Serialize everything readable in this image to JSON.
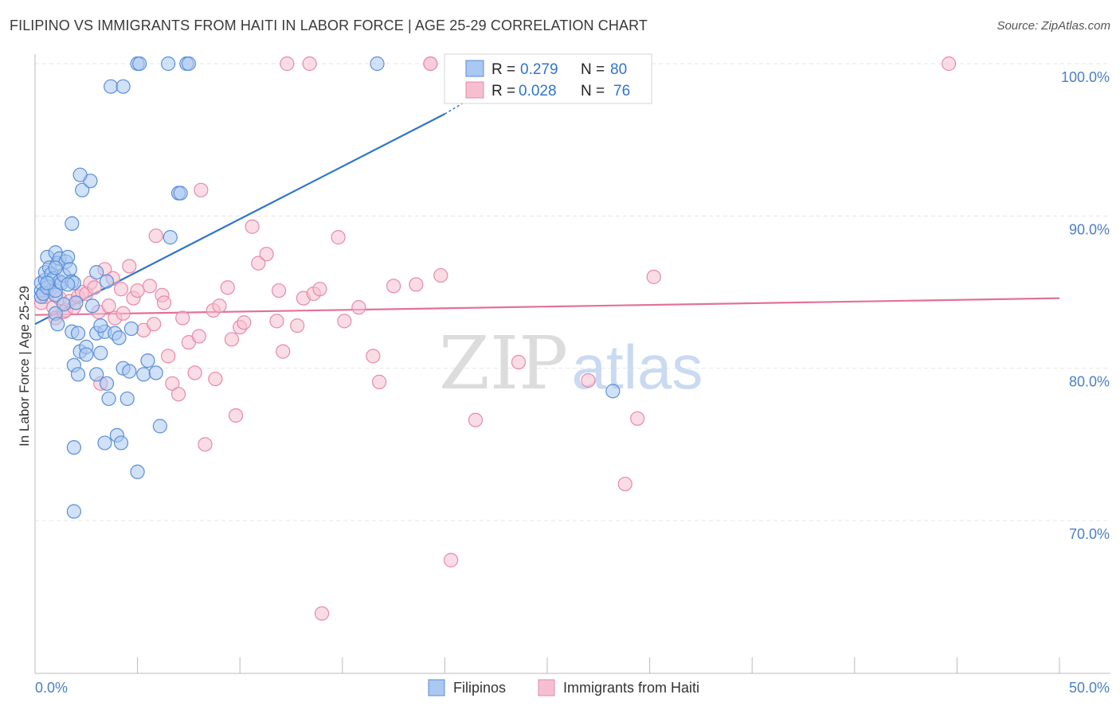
{
  "title": "FILIPINO VS IMMIGRANTS FROM HAITI IN LABOR FORCE | AGE 25-29 CORRELATION CHART",
  "source": "Source: ZipAtlas.com",
  "watermark": {
    "zip": "ZIP",
    "atlas": "atlas"
  },
  "legend_box": {
    "rows": [
      {
        "r_label": "R = ",
        "r_value": "0.279",
        "n_label": "N = ",
        "n_value": "80"
      },
      {
        "r_label": "R = ",
        "r_value": "0.028",
        "n_label": "N = ",
        "n_value": "76"
      }
    ]
  },
  "colors": {
    "blue_fill": "#a9c8f2",
    "blue_stroke": "#5b8ed6",
    "blue_line": "#2f74cf",
    "pink_fill": "#f6bfd0",
    "pink_stroke": "#e68aa8",
    "pink_line": "#e3719a",
    "axis_text": "#4a7fc8",
    "grid": "#e6e6e6"
  },
  "chart_data": {
    "type": "scatter",
    "title": "FILIPINO VS IMMIGRANTS FROM HAITI IN LABOR FORCE | AGE 25-29 CORRELATION CHART",
    "xlabel": "",
    "ylabel": "In Labor Force | Age 25-29",
    "xlim": [
      0,
      50
    ],
    "ylim": [
      60,
      100
    ],
    "x_tick_labels": [
      "0.0%",
      "50.0%"
    ],
    "y_ticks": [
      70,
      80,
      90,
      100
    ],
    "y_tick_labels": [
      "70.0%",
      "80.0%",
      "90.0%",
      "100.0%"
    ],
    "legend": [
      "Filipinos",
      "Immigrants from Haiti"
    ],
    "series": [
      {
        "name": "Filipinos",
        "r": 0.279,
        "n": 80,
        "trend": {
          "x0": 0,
          "y0": 82.9,
          "x1": 20,
          "y1": 96.7,
          "x1_dashed": 21.5,
          "y1_dashed": 97.9
        },
        "points": [
          [
            0.3,
            85.1
          ],
          [
            0.3,
            84.7
          ],
          [
            0.3,
            85.6
          ],
          [
            0.4,
            84.9
          ],
          [
            0.5,
            85.8
          ],
          [
            0.5,
            86.3
          ],
          [
            0.6,
            87.3
          ],
          [
            0.6,
            85.3
          ],
          [
            0.7,
            86.6
          ],
          [
            0.8,
            86.2
          ],
          [
            0.9,
            85.9
          ],
          [
            1.0,
            84.8
          ],
          [
            1.0,
            85.1
          ],
          [
            1.0,
            87.6
          ],
          [
            1.1,
            86.9
          ],
          [
            1.2,
            87.2
          ],
          [
            1.2,
            85.7
          ],
          [
            1.3,
            85.6
          ],
          [
            1.4,
            86.1
          ],
          [
            1.5,
            87.0
          ],
          [
            1.6,
            87.3
          ],
          [
            1.7,
            86.5
          ],
          [
            1.8,
            85.7
          ],
          [
            1.9,
            85.6
          ],
          [
            1.4,
            84.2
          ],
          [
            1.0,
            83.6
          ],
          [
            1.1,
            82.9
          ],
          [
            1.8,
            82.4
          ],
          [
            2.1,
            82.3
          ],
          [
            2.2,
            81.1
          ],
          [
            2.5,
            81.4
          ],
          [
            2.5,
            80.9
          ],
          [
            1.9,
            80.2
          ],
          [
            2.1,
            79.6
          ],
          [
            2.3,
            91.7
          ],
          [
            2.7,
            92.3
          ],
          [
            2.2,
            92.7
          ],
          [
            1.8,
            89.5
          ],
          [
            1.9,
            74.8
          ],
          [
            1.9,
            70.6
          ],
          [
            2.8,
            84.1
          ],
          [
            3.0,
            86.3
          ],
          [
            3.0,
            82.3
          ],
          [
            3.2,
            81.0
          ],
          [
            3.0,
            79.6
          ],
          [
            3.4,
            82.4
          ],
          [
            3.5,
            85.7
          ],
          [
            3.4,
            75.1
          ],
          [
            3.5,
            79.0
          ],
          [
            3.6,
            78.0
          ],
          [
            3.7,
            98.5
          ],
          [
            3.9,
            82.3
          ],
          [
            4.0,
            75.6
          ],
          [
            4.1,
            82.0
          ],
          [
            4.2,
            75.1
          ],
          [
            4.3,
            80.0
          ],
          [
            4.5,
            78.0
          ],
          [
            4.6,
            79.8
          ],
          [
            4.7,
            82.6
          ],
          [
            5.0,
            100
          ],
          [
            5.0,
            73.2
          ],
          [
            5.1,
            100
          ],
          [
            5.3,
            79.6
          ],
          [
            5.5,
            80.5
          ],
          [
            5.9,
            79.7
          ],
          [
            6.1,
            76.2
          ],
          [
            6.5,
            100
          ],
          [
            6.6,
            88.6
          ],
          [
            7.0,
            91.5
          ],
          [
            7.1,
            91.5
          ],
          [
            7.4,
            100
          ],
          [
            7.5,
            100
          ],
          [
            16.7,
            100
          ],
          [
            28.2,
            78.5
          ],
          [
            4.3,
            98.5
          ],
          [
            1.0,
            86.6
          ],
          [
            0.6,
            85.6
          ],
          [
            1.6,
            85.5
          ],
          [
            2.0,
            84.3
          ],
          [
            3.2,
            82.8
          ]
        ]
      },
      {
        "name": "Immigrants from Haiti",
        "r": 0.028,
        "n": 76,
        "trend": {
          "x0": 0,
          "y0": 83.5,
          "x1": 50,
          "y1": 84.6
        },
        "points": [
          [
            0.3,
            84.3
          ],
          [
            0.5,
            84.7
          ],
          [
            0.7,
            85.1
          ],
          [
            0.9,
            84.0
          ],
          [
            1.0,
            83.3
          ],
          [
            1.2,
            84.6
          ],
          [
            1.4,
            83.7
          ],
          [
            1.5,
            83.8
          ],
          [
            1.7,
            84.4
          ],
          [
            1.9,
            84.0
          ],
          [
            2.1,
            84.7
          ],
          [
            2.3,
            85.0
          ],
          [
            2.5,
            84.9
          ],
          [
            2.7,
            85.6
          ],
          [
            2.9,
            85.3
          ],
          [
            3.1,
            83.7
          ],
          [
            3.2,
            79.0
          ],
          [
            3.4,
            86.5
          ],
          [
            3.6,
            84.1
          ],
          [
            3.8,
            85.9
          ],
          [
            3.9,
            83.3
          ],
          [
            4.2,
            85.2
          ],
          [
            4.3,
            83.6
          ],
          [
            4.6,
            86.7
          ],
          [
            4.8,
            84.6
          ],
          [
            5.0,
            85.1
          ],
          [
            5.3,
            82.5
          ],
          [
            5.6,
            85.4
          ],
          [
            5.8,
            82.9
          ],
          [
            5.9,
            88.7
          ],
          [
            6.2,
            84.8
          ],
          [
            6.3,
            84.3
          ],
          [
            6.5,
            80.8
          ],
          [
            6.7,
            79.0
          ],
          [
            7.0,
            78.3
          ],
          [
            7.2,
            83.3
          ],
          [
            7.5,
            81.7
          ],
          [
            7.8,
            79.7
          ],
          [
            8.0,
            82.1
          ],
          [
            8.1,
            91.7
          ],
          [
            8.3,
            75.0
          ],
          [
            8.7,
            83.8
          ],
          [
            8.8,
            79.3
          ],
          [
            9.0,
            84.1
          ],
          [
            9.4,
            85.3
          ],
          [
            9.6,
            81.9
          ],
          [
            9.8,
            76.9
          ],
          [
            10.0,
            82.7
          ],
          [
            10.2,
            83.0
          ],
          [
            10.6,
            89.3
          ],
          [
            10.9,
            86.9
          ],
          [
            11.3,
            87.5
          ],
          [
            11.8,
            83.1
          ],
          [
            11.9,
            85.1
          ],
          [
            12.1,
            81.1
          ],
          [
            12.8,
            82.8
          ],
          [
            13.1,
            84.6
          ],
          [
            13.6,
            84.9
          ],
          [
            13.9,
            85.2
          ],
          [
            14.0,
            63.9
          ],
          [
            14.8,
            88.6
          ],
          [
            15.1,
            83.1
          ],
          [
            15.8,
            84.0
          ],
          [
            16.5,
            80.8
          ],
          [
            16.8,
            79.1
          ],
          [
            17.5,
            85.4
          ],
          [
            18.6,
            85.5
          ],
          [
            19.3,
            100
          ],
          [
            19.8,
            86.1
          ],
          [
            20.3,
            67.4
          ],
          [
            21.5,
            76.6
          ],
          [
            23.6,
            80.4
          ],
          [
            27.0,
            79.2
          ],
          [
            28.8,
            72.4
          ],
          [
            29.4,
            76.7
          ],
          [
            30.2,
            86.0
          ]
        ],
        "extra_points_top": [
          [
            12.3,
            100
          ],
          [
            13.4,
            100
          ],
          [
            19.3,
            100
          ],
          [
            44.6,
            100
          ]
        ]
      }
    ]
  }
}
